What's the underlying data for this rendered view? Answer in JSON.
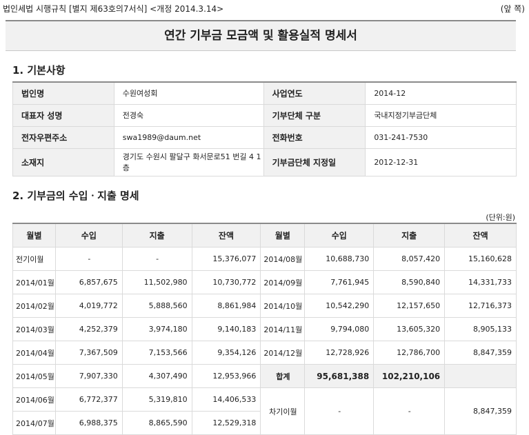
{
  "header": {
    "form_ref": "법인세법 시행규칙 [별지 제63호의7서식] <개정 2014.3.14>",
    "side": "(앞 쪽)"
  },
  "title": "연간 기부금 모금액 및 활용실적 명세서",
  "section1": {
    "heading": "1. 기본사항",
    "rows": [
      {
        "k1": "법인명",
        "v1": "수원여성회",
        "k2": "사업연도",
        "v2": "2014-12"
      },
      {
        "k1": "대표자 성명",
        "v1": "전경숙",
        "k2": "기부단체 구분",
        "v2": "국내지정기부금단체"
      },
      {
        "k1": "전자우편주소",
        "v1": "swa1989@daum.net",
        "k2": "전화번호",
        "v2": "031-241-7530"
      },
      {
        "k1": "소재지",
        "v1": "경기도 수원시 팔달구 화서문로51 번길 4 1층",
        "k2": "기부금단체 지정일",
        "v2": "2012-12-31"
      }
    ]
  },
  "section2": {
    "heading": "2. 기부금의 수입ㆍ지출 명세",
    "unit": "(단위:원)",
    "columns": [
      "월별",
      "수입",
      "지출",
      "잔액",
      "월별",
      "수입",
      "지출",
      "잔액"
    ],
    "left": [
      {
        "m": "전기이월",
        "in": "-",
        "out": "-",
        "bal": "15,376,077"
      },
      {
        "m": "2014/01월",
        "in": "6,857,675",
        "out": "11,502,980",
        "bal": "10,730,772"
      },
      {
        "m": "2014/02월",
        "in": "4,019,772",
        "out": "5,888,560",
        "bal": "8,861,984"
      },
      {
        "m": "2014/03월",
        "in": "4,252,379",
        "out": "3,974,180",
        "bal": "9,140,183"
      },
      {
        "m": "2014/04월",
        "in": "7,367,509",
        "out": "7,153,566",
        "bal": "9,354,126"
      },
      {
        "m": "2014/05월",
        "in": "7,907,330",
        "out": "4,307,490",
        "bal": "12,953,966"
      },
      {
        "m": "2014/06월",
        "in": "6,772,377",
        "out": "5,319,810",
        "bal": "14,406,533"
      },
      {
        "m": "2014/07월",
        "in": "6,988,375",
        "out": "8,865,590",
        "bal": "12,529,318"
      }
    ],
    "right": [
      {
        "m": "2014/08월",
        "in": "10,688,730",
        "out": "8,057,420",
        "bal": "15,160,628"
      },
      {
        "m": "2014/09월",
        "in": "7,761,945",
        "out": "8,590,840",
        "bal": "14,331,733"
      },
      {
        "m": "2014/10월",
        "in": "10,542,290",
        "out": "12,157,650",
        "bal": "12,716,373"
      },
      {
        "m": "2014/11월",
        "in": "9,794,080",
        "out": "13,605,320",
        "bal": "8,905,133"
      },
      {
        "m": "2014/12월",
        "in": "12,728,926",
        "out": "12,786,700",
        "bal": "8,847,359"
      }
    ],
    "total": {
      "label": "합계",
      "in": "95,681,388",
      "out": "102,210,106"
    },
    "carry": {
      "label": "차기이월",
      "in": "-",
      "out": "-",
      "bal": "8,847,359"
    }
  }
}
